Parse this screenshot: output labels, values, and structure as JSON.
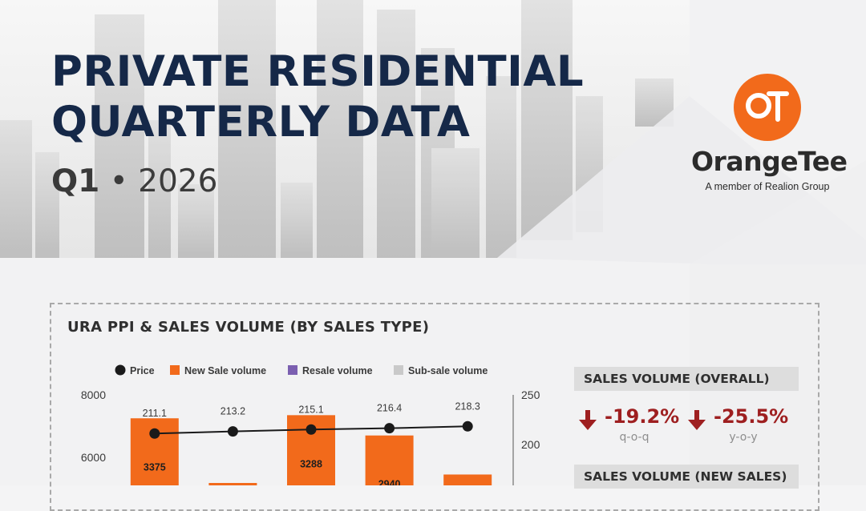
{
  "header": {
    "title_line1": "PRIVATE RESIDENTIAL",
    "title_line2": "QUARTERLY DATA",
    "quarter": "Q1",
    "separator": "•",
    "year": "2026"
  },
  "brand": {
    "logo_monogram": "OT",
    "name": "OrangeTee",
    "tagline": "A member of Realion Group",
    "accent_color": "#f26a1b"
  },
  "colors": {
    "title": "#152848",
    "bar": "#f26a1b",
    "resale": "#7b5fb0",
    "subsale": "#c9c9c9",
    "line": "#1a1a1a",
    "negative": "#9e1f20"
  },
  "panel": {
    "title": "URA PPI & SALES VOLUME (BY SALES TYPE)"
  },
  "chart_data": {
    "type": "bar",
    "title": "URA PPI & SALES VOLUME (BY SALES TYPE)",
    "legend_position": "top",
    "legend": [
      "Price",
      "New Sale volume",
      "Resale volume",
      "Sub-sale volume"
    ],
    "y_left": {
      "ticks": [
        8000,
        6000
      ],
      "range": [
        0,
        8000
      ]
    },
    "y_right": {
      "ticks": [
        250,
        200
      ],
      "range": [
        50,
        250
      ]
    },
    "series": [
      {
        "name": "New Sale volume",
        "type": "bar",
        "axis": "left",
        "values": [
          7250,
          null,
          7350,
          6700,
          5450
        ],
        "value_labels": [
          "3375",
          "",
          "3288",
          "2940",
          ""
        ]
      },
      {
        "name": "Price",
        "type": "line",
        "axis": "right",
        "values": [
          211.1,
          213.2,
          215.1,
          216.4,
          218.3
        ],
        "value_labels": [
          "211.1",
          "213.2",
          "215.1",
          "216.4",
          "218.3"
        ]
      }
    ],
    "grid": false
  },
  "stats": {
    "overall": {
      "heading": "SALES VOLUME (OVERALL)",
      "qoq": {
        "value": "-19.2%",
        "label": "q-o-q"
      },
      "yoy": {
        "value": "-25.5%",
        "label": "y-o-y"
      }
    },
    "new_sales": {
      "heading": "SALES VOLUME (NEW SALES)"
    }
  }
}
